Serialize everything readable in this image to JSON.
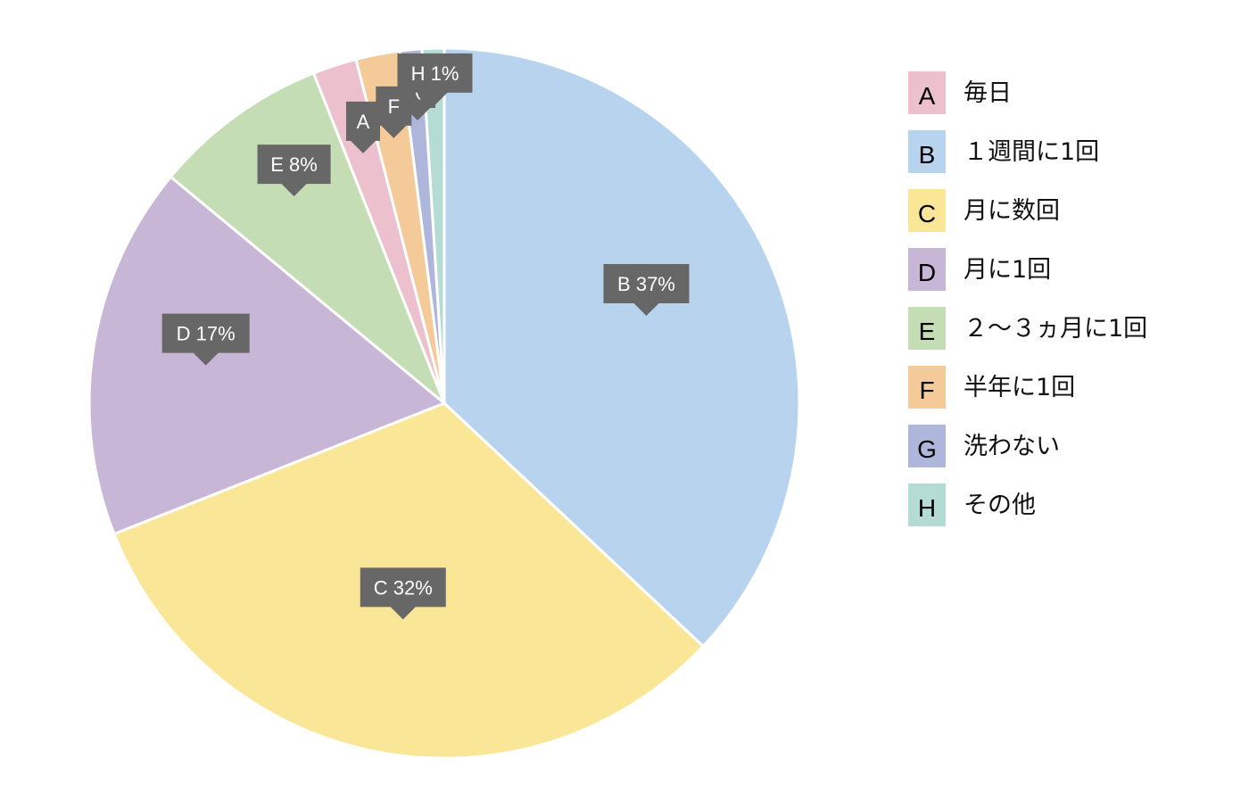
{
  "chart_data": {
    "type": "pie",
    "title": "",
    "legend_position": "right",
    "slices": [
      {
        "key": "A",
        "label": "毎日",
        "value": 2,
        "label_text": "A",
        "color": "#ecc0cc"
      },
      {
        "key": "B",
        "label": "１週間に1回",
        "value": 37,
        "label_text": "B 37%",
        "color": "#b8d3ee"
      },
      {
        "key": "C",
        "label": "月に数回",
        "value": 32,
        "label_text": "C 32%",
        "color": "#f9e797"
      },
      {
        "key": "D",
        "label": "月に1回",
        "value": 17,
        "label_text": "D 17%",
        "color": "#c8b6d6"
      },
      {
        "key": "E",
        "label": "２〜３ヵ月に1回",
        "value": 8,
        "label_text": "E 8%",
        "color": "#c4ddb4"
      },
      {
        "key": "F",
        "label": "半年に1回",
        "value": 2,
        "label_text": "F",
        "color": "#f3ca98"
      },
      {
        "key": "G",
        "label": "洗わない",
        "value": 1,
        "label_text": "(",
        "color": "#aeb6db"
      },
      {
        "key": "H",
        "label": "その他",
        "value": 1,
        "label_text": "H 1%",
        "color": "#b4dbd4"
      }
    ]
  }
}
